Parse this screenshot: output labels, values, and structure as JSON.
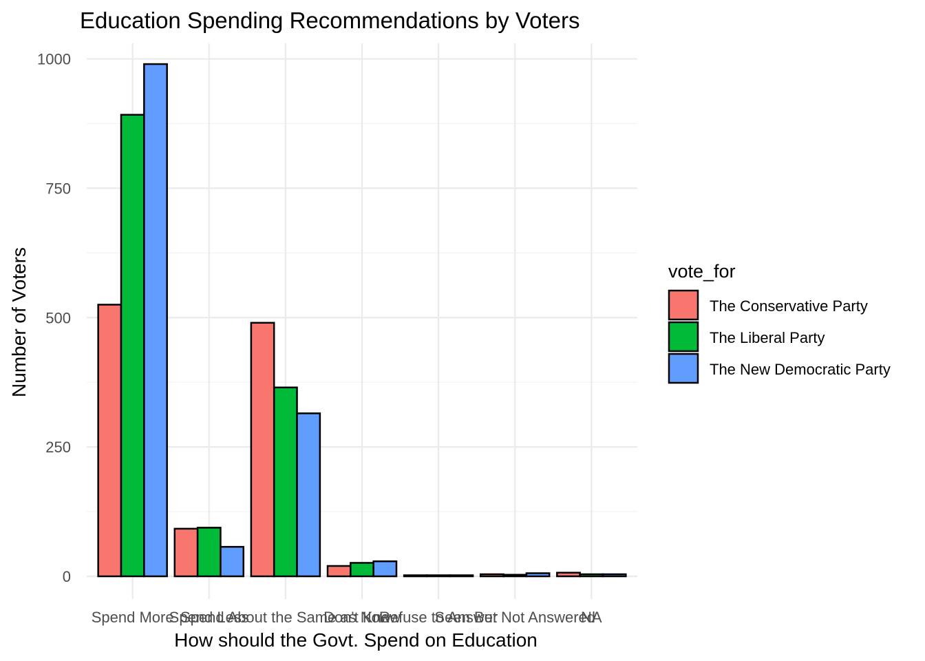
{
  "chart_data": {
    "type": "bar",
    "title": "Education Spending Recommendations by Voters",
    "xlabel": "How should the Govt. Spend on Education",
    "ylabel": "Number of Voters",
    "categories": [
      "Spend More",
      "Spend Less",
      "Spend About the Same as Now",
      "Don't Know",
      "Refuse to Answer",
      "Seen But Not Answered",
      "NA"
    ],
    "yticks": [
      0,
      250,
      500,
      750,
      1000
    ],
    "ylim": [
      0,
      1030
    ],
    "grid": true,
    "legend": {
      "title": "vote_for",
      "placement": "right"
    },
    "series": [
      {
        "name": "The Conservative Party",
        "color": "#F8766D",
        "values": [
          525,
          92,
          490,
          20,
          2,
          4,
          7
        ]
      },
      {
        "name": "The Liberal Party",
        "color": "#00BA38",
        "values": [
          892,
          94,
          365,
          26,
          2,
          3,
          4
        ]
      },
      {
        "name": "The New Democratic Party",
        "color": "#619CFF",
        "values": [
          990,
          57,
          315,
          29,
          2,
          6,
          4
        ]
      }
    ]
  }
}
